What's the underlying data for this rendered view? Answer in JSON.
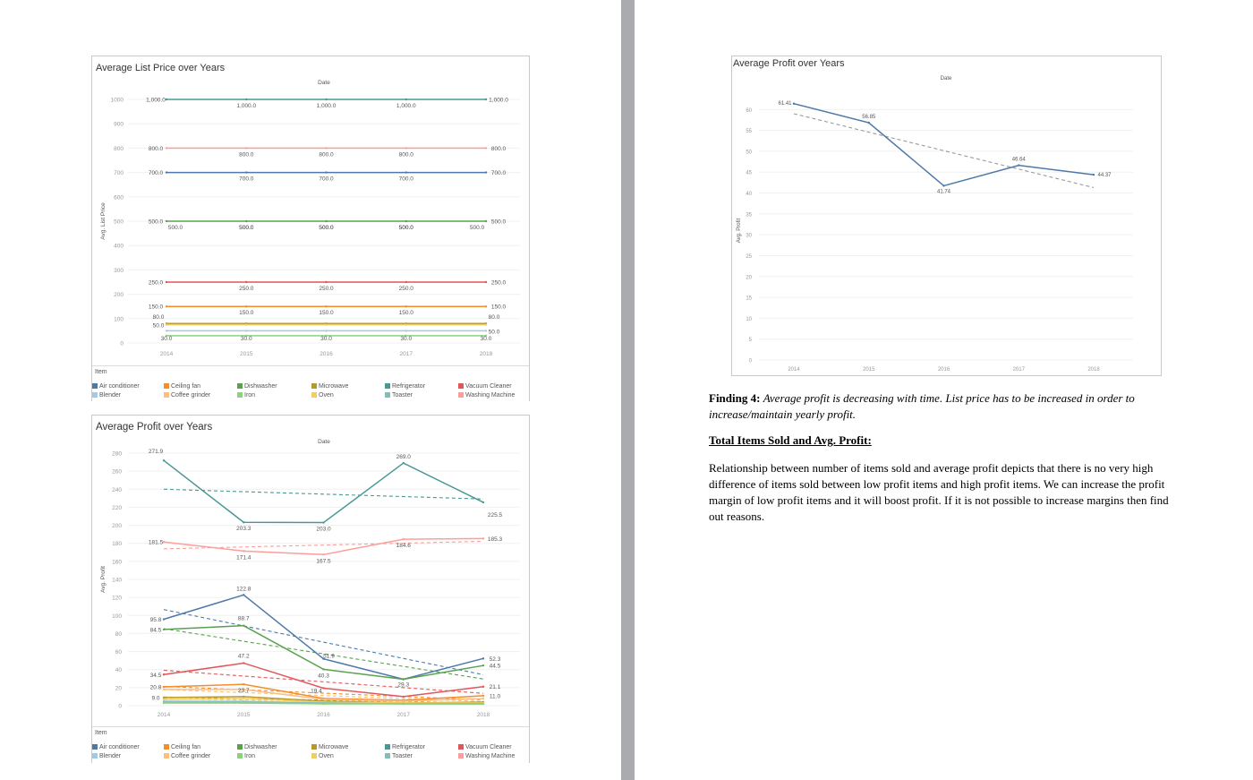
{
  "left_page": {
    "chart1": {
      "title": "Average List Price over Years",
      "date_header": "Date",
      "y_axis_title": "Avg. List Price",
      "legend_title": "Item",
      "legend": [
        "Air conditioner",
        "Ceiling fan",
        "Dishwasher",
        "Microwave",
        "Refrigerator",
        "Vacuum Cleaner",
        "Blender",
        "Coffee grinder",
        "Iron",
        "Oven",
        "Toaster",
        "Washing Machine"
      ]
    },
    "chart2": {
      "title": "Average Profit over Years",
      "date_header": "Date",
      "y_axis_title": "Avg. Profit",
      "legend_title": "Item",
      "legend": [
        "Air conditioner",
        "Ceiling fan",
        "Dishwasher",
        "Microwave",
        "Refrigerator",
        "Vacuum Cleaner",
        "Blender",
        "Coffee grinder",
        "Iron",
        "Oven",
        "Toaster",
        "Washing Machine"
      ]
    }
  },
  "right_page": {
    "chart3": {
      "title": "Average Profit over Years",
      "date_header": "Date",
      "y_axis_title": "Avg. Profit"
    },
    "finding_label": "Finding 4:",
    "finding_text": "Average profit is decreasing with time. List price has to be increased in order to increase/maintain yearly profit.",
    "section_heading": "Total Items Sold and Avg. Profit:",
    "body_text": "Relationship between number of items sold and average profit depicts that there is no very high difference of items sold between low profit items and high profit items. We can increase the profit margin of low profit items and it will boost profit. If it is not possible to increase margins then find out reasons."
  },
  "colors": {
    "Air conditioner": "#4e79a7",
    "Blender": "#a0cbe8",
    "Ceiling fan": "#f28e2b",
    "Coffee grinder": "#ffbe7d",
    "Dishwasher": "#59a14f",
    "Iron": "#8cd17d",
    "Microwave": "#b6992d",
    "Oven": "#f1ce63",
    "Refrigerator": "#499894",
    "Toaster": "#86bcb6",
    "Vacuum Cleaner": "#e15759",
    "Washing Machine": "#ff9d9a"
  },
  "chart_data": [
    {
      "type": "line",
      "title": "Average List Price over Years",
      "header": "Date",
      "ylabel": "Avg. List Price",
      "x": [
        2014,
        2015,
        2016,
        2017,
        2018
      ],
      "ylim": [
        0,
        1000
      ],
      "yticks": [
        0,
        100,
        200,
        300,
        400,
        500,
        600,
        700,
        800,
        900,
        1000
      ],
      "legend_placement": "bottom",
      "series": [
        {
          "name": "Refrigerator",
          "values": [
            1000,
            1000,
            1000,
            1000,
            1000
          ]
        },
        {
          "name": "Washing Machine",
          "values": [
            800,
            800,
            800,
            800,
            800
          ]
        },
        {
          "name": "Air conditioner",
          "values": [
            700,
            700,
            700,
            700,
            700
          ]
        },
        {
          "name": "Dishwasher",
          "values": [
            500,
            500,
            500,
            500,
            500
          ]
        },
        {
          "name": "Vacuum Cleaner",
          "values": [
            250,
            250,
            250,
            250,
            250
          ]
        },
        {
          "name": "Ceiling fan",
          "values": [
            150,
            150,
            150,
            150,
            150
          ]
        },
        {
          "name": "Microwave",
          "values": [
            80,
            80,
            80,
            80,
            80
          ]
        },
        {
          "name": "Oven",
          "values": [
            75,
            75,
            75,
            75,
            75
          ]
        },
        {
          "name": "Blender",
          "values": [
            50,
            50,
            50,
            50,
            50
          ]
        },
        {
          "name": "Iron",
          "values": [
            30,
            30,
            30,
            30,
            30
          ]
        }
      ],
      "data_labels": [
        {
          "x": 2014,
          "y": 1000,
          "text": "1,000.0"
        },
        {
          "x": 2015,
          "y": 1000,
          "text": "1,000.0"
        },
        {
          "x": 2016,
          "y": 1000,
          "text": "1,000.0"
        },
        {
          "x": 2017,
          "y": 1000,
          "text": "1,000.0"
        },
        {
          "x": 2018,
          "y": 1000,
          "text": "1,000.0"
        },
        {
          "x": 2014,
          "y": 800,
          "text": "800.0"
        },
        {
          "x": 2015,
          "y": 800,
          "text": "800.0"
        },
        {
          "x": 2016,
          "y": 800,
          "text": "800.0"
        },
        {
          "x": 2017,
          "y": 800,
          "text": "800.0"
        },
        {
          "x": 2018,
          "y": 800,
          "text": "800.0"
        },
        {
          "x": 2014,
          "y": 700,
          "text": "700.0"
        },
        {
          "x": 2015,
          "y": 700,
          "text": "700.0"
        },
        {
          "x": 2016,
          "y": 700,
          "text": "700.0"
        },
        {
          "x": 2017,
          "y": 700,
          "text": "700.0"
        },
        {
          "x": 2018,
          "y": 700,
          "text": "700.0"
        },
        {
          "x": 2014,
          "y": 500,
          "text": "500.0"
        },
        {
          "x": 2015,
          "y": 500,
          "text": "500.0"
        },
        {
          "x": 2016,
          "y": 500,
          "text": "500.0"
        },
        {
          "x": 2017,
          "y": 500,
          "text": "500.0"
        },
        {
          "x": 2018,
          "y": 500,
          "text": "500.0"
        },
        {
          "x": 2014,
          "y": 500,
          "text": "500.0"
        },
        {
          "x": 2015,
          "y": 500,
          "text": "500.0"
        },
        {
          "x": 2016,
          "y": 500,
          "text": "500.0"
        },
        {
          "x": 2017,
          "y": 500,
          "text": "500.0"
        },
        {
          "x": 2018,
          "y": 500,
          "text": "500.0"
        },
        {
          "x": 2014,
          "y": 250,
          "text": "250.0"
        },
        {
          "x": 2015,
          "y": 250,
          "text": "250.0"
        },
        {
          "x": 2016,
          "y": 250,
          "text": "250.0"
        },
        {
          "x": 2017,
          "y": 250,
          "text": "250.0"
        },
        {
          "x": 2018,
          "y": 250,
          "text": "250.0"
        },
        {
          "x": 2014,
          "y": 150,
          "text": "150.0"
        },
        {
          "x": 2015,
          "y": 150,
          "text": "150.0"
        },
        {
          "x": 2016,
          "y": 150,
          "text": "150.0"
        },
        {
          "x": 2017,
          "y": 150,
          "text": "150.0"
        },
        {
          "x": 2018,
          "y": 150,
          "text": "150.0"
        },
        {
          "x": 2014,
          "y": 80,
          "text": "80.0"
        },
        {
          "x": 2018,
          "y": 80,
          "text": "80.0"
        },
        {
          "x": 2014,
          "y": 50,
          "text": "50.0"
        },
        {
          "x": 2018,
          "y": 50,
          "text": "50.0"
        },
        {
          "x": 2014,
          "y": 30,
          "text": "30.0"
        },
        {
          "x": 2015,
          "y": 30,
          "text": "30.0"
        },
        {
          "x": 2016,
          "y": 30,
          "text": "30.0"
        },
        {
          "x": 2017,
          "y": 30,
          "text": "30.0"
        },
        {
          "x": 2018,
          "y": 30,
          "text": "30.0"
        }
      ]
    },
    {
      "type": "line",
      "title": "Average Profit over Years",
      "header": "Date",
      "ylabel": "Avg. Profit",
      "x": [
        2014,
        2015,
        2016,
        2017,
        2018
      ],
      "ylim": [
        0,
        280
      ],
      "yticks": [
        0,
        20,
        40,
        60,
        80,
        100,
        120,
        140,
        160,
        180,
        200,
        220,
        240,
        260,
        280
      ],
      "trend_lines": "dashed",
      "legend_placement": "bottom",
      "series": [
        {
          "name": "Refrigerator",
          "values": [
            271.9,
            203.3,
            203.0,
            269.0,
            225.5
          ]
        },
        {
          "name": "Washing Machine",
          "values": [
            181.5,
            171.4,
            167.5,
            184.6,
            185.3
          ]
        },
        {
          "name": "Air conditioner",
          "values": [
            95.8,
            122.8,
            51.9,
            29.3,
            52.3
          ]
        },
        {
          "name": "Dishwasher",
          "values": [
            84.5,
            88.7,
            40.3,
            29.3,
            44.5
          ]
        },
        {
          "name": "Vacuum Cleaner",
          "values": [
            34.5,
            47.2,
            19.4,
            10.0,
            21.1
          ]
        },
        {
          "name": "Ceiling fan",
          "values": [
            20.8,
            23.7,
            8.0,
            6.0,
            11.0
          ]
        },
        {
          "name": "Coffee grinder",
          "values": [
            18.0,
            18.0,
            7.0,
            5.0,
            8.0
          ]
        },
        {
          "name": "Microwave",
          "values": [
            9.0,
            10.0,
            5.0,
            3.0,
            4.0
          ]
        },
        {
          "name": "Oven",
          "values": [
            7.0,
            8.0,
            4.0,
            3.0,
            3.0
          ]
        },
        {
          "name": "Blender",
          "values": [
            5.0,
            5.0,
            3.0,
            2.0,
            2.0
          ]
        },
        {
          "name": "Toaster",
          "values": [
            4.0,
            4.0,
            3.0,
            2.0,
            2.0
          ]
        },
        {
          "name": "Iron",
          "values": [
            3.0,
            3.0,
            2.0,
            2.0,
            2.0
          ]
        }
      ],
      "data_labels": [
        {
          "x": 2014,
          "y": 271.9,
          "text": "271.9"
        },
        {
          "x": 2015,
          "y": 203.3,
          "text": "203.3"
        },
        {
          "x": 2016,
          "y": 203.0,
          "text": "203.0"
        },
        {
          "x": 2017,
          "y": 269.0,
          "text": "269.0"
        },
        {
          "x": 2018,
          "y": 225.5,
          "text": "225.5"
        },
        {
          "x": 2014,
          "y": 181.5,
          "text": "181.5"
        },
        {
          "x": 2015,
          "y": 171.4,
          "text": "171.4"
        },
        {
          "x": 2016,
          "y": 167.5,
          "text": "167.5"
        },
        {
          "x": 2017,
          "y": 184.6,
          "text": "184.6"
        },
        {
          "x": 2018,
          "y": 185.3,
          "text": "185.3"
        },
        {
          "x": 2015,
          "y": 122.8,
          "text": "122.8"
        },
        {
          "x": 2014,
          "y": 95.8,
          "text": "95.8"
        },
        {
          "x": 2015,
          "y": 88.7,
          "text": "88.7"
        },
        {
          "x": 2014,
          "y": 84.5,
          "text": "84.5"
        },
        {
          "x": 2016,
          "y": 51.9,
          "text": "51.9"
        },
        {
          "x": 2018,
          "y": 52.3,
          "text": "52.3"
        },
        {
          "x": 2015,
          "y": 47.2,
          "text": "47.2"
        },
        {
          "x": 2018,
          "y": 44.5,
          "text": "44.5"
        },
        {
          "x": 2016,
          "y": 40.3,
          "text": "40.3"
        },
        {
          "x": 2014,
          "y": 34.5,
          "text": "34.5"
        },
        {
          "x": 2015,
          "y": 23.7,
          "text": "23.7"
        },
        {
          "x": 2017,
          "y": 29.3,
          "text": "29.3"
        },
        {
          "x": 2014,
          "y": 20.8,
          "text": "20.8"
        },
        {
          "x": 2016,
          "y": 19.4,
          "text": "19.4"
        },
        {
          "x": 2018,
          "y": 21.1,
          "text": "21.1"
        },
        {
          "x": 2018,
          "y": 11.0,
          "text": "11.0"
        },
        {
          "x": 2014,
          "y": 9.0,
          "text": "9.0"
        }
      ]
    },
    {
      "type": "line",
      "title": "Average Profit over Years",
      "header": "Date",
      "ylabel": "Avg. Profit",
      "x": [
        2014,
        2015,
        2016,
        2017,
        2018
      ],
      "ylim": [
        0,
        62
      ],
      "yticks": [
        0,
        5,
        10,
        15,
        20,
        25,
        30,
        35,
        40,
        45,
        50,
        55,
        60
      ],
      "trend_line": {
        "start": 59.0,
        "end": 41.3,
        "style": "dashed"
      },
      "series": [
        {
          "values": [
            61.41,
            56.85,
            41.74,
            46.64,
            44.37
          ]
        }
      ],
      "data_labels": [
        "61.41",
        "56.85",
        "41.74",
        "46.64",
        "44.37"
      ]
    }
  ]
}
